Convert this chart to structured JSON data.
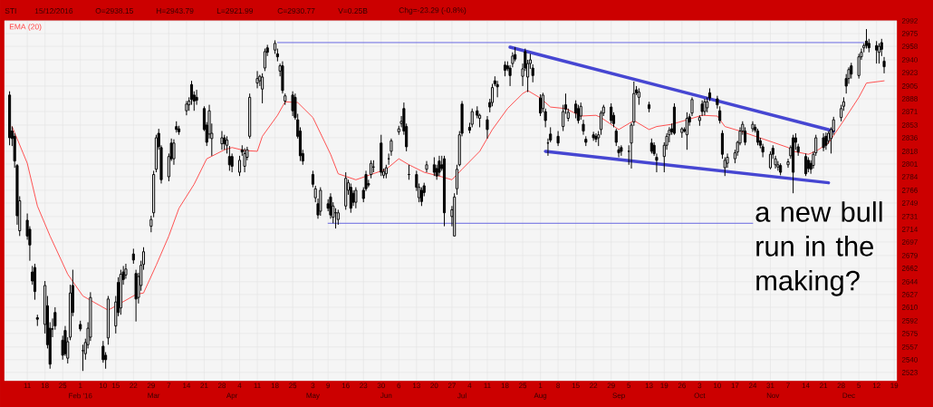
{
  "chart_data": {
    "type": "candlestick",
    "title": "STI",
    "annotations": [
      "15/12/2016",
      "O=2938.15",
      "H=2943.79",
      "L=2921.99",
      "C=2930.77",
      "V=0.25B",
      "Chg=-23.29 (-0.8%)",
      "a new bull run in the making?"
    ],
    "x": [
      "2016-01-04",
      "2016-01-05",
      "2016-01-06",
      "2016-01-07",
      "2016-01-08",
      "2016-01-11",
      "2016-01-12",
      "2016-01-13",
      "2016-01-14",
      "2016-01-15",
      "2016-01-18",
      "2016-01-19",
      "2016-01-20",
      "2016-01-21",
      "2016-01-22",
      "2016-01-25",
      "2016-01-26",
      "2016-01-27",
      "2016-01-28",
      "2016-01-29",
      "2016-02-01",
      "2016-02-02",
      "2016-02-03",
      "2016-02-04",
      "2016-02-05",
      "2016-02-10",
      "2016-02-11",
      "2016-02-12",
      "2016-02-15",
      "2016-02-16",
      "2016-02-17",
      "2016-02-18",
      "2016-02-19",
      "2016-02-22",
      "2016-02-23",
      "2016-02-24",
      "2016-02-25",
      "2016-02-26",
      "2016-02-29",
      "2016-03-01",
      "2016-03-02",
      "2016-03-03",
      "2016-03-04",
      "2016-03-07",
      "2016-03-08",
      "2016-03-09",
      "2016-03-10",
      "2016-03-11",
      "2016-03-14",
      "2016-03-15",
      "2016-03-16",
      "2016-03-17",
      "2016-03-18",
      "2016-03-21",
      "2016-03-22",
      "2016-03-23",
      "2016-03-24",
      "2016-03-28",
      "2016-03-29",
      "2016-03-30",
      "2016-03-31",
      "2016-04-01",
      "2016-04-04",
      "2016-04-05",
      "2016-04-06",
      "2016-04-07",
      "2016-04-08",
      "2016-04-11",
      "2016-04-12",
      "2016-04-13",
      "2016-04-14",
      "2016-04-15",
      "2016-04-18",
      "2016-04-19",
      "2016-04-20",
      "2016-04-21",
      "2016-04-22",
      "2016-04-25",
      "2016-04-26",
      "2016-04-27",
      "2016-04-28",
      "2016-04-29",
      "2016-05-03",
      "2016-05-04",
      "2016-05-05",
      "2016-05-06",
      "2016-05-09",
      "2016-05-10",
      "2016-05-11",
      "2016-05-12",
      "2016-05-13",
      "2016-05-16",
      "2016-05-17",
      "2016-05-18",
      "2016-05-19",
      "2016-05-20",
      "2016-05-23",
      "2016-05-24",
      "2016-05-25",
      "2016-05-26",
      "2016-05-27",
      "2016-05-30",
      "2016-05-31",
      "2016-06-01",
      "2016-06-02",
      "2016-06-03",
      "2016-06-06",
      "2016-06-07",
      "2016-06-08",
      "2016-06-09",
      "2016-06-10",
      "2016-06-13",
      "2016-06-14",
      "2016-06-15",
      "2016-06-16",
      "2016-06-17",
      "2016-06-20",
      "2016-06-21",
      "2016-06-22",
      "2016-06-23",
      "2016-06-24",
      "2016-06-27",
      "2016-06-28",
      "2016-06-29",
      "2016-06-30",
      "2016-07-01",
      "2016-07-04",
      "2016-07-05",
      "2016-07-07",
      "2016-07-08",
      "2016-07-11",
      "2016-07-12",
      "2016-07-13",
      "2016-07-14",
      "2016-07-15",
      "2016-07-18",
      "2016-07-19",
      "2016-07-20",
      "2016-07-21",
      "2016-07-22",
      "2016-07-25",
      "2016-07-26",
      "2016-07-27",
      "2016-07-28",
      "2016-07-29",
      "2016-08-01",
      "2016-08-02",
      "2016-08-03",
      "2016-08-04",
      "2016-08-05",
      "2016-08-08",
      "2016-08-10",
      "2016-08-11",
      "2016-08-12",
      "2016-08-15",
      "2016-08-16",
      "2016-08-17",
      "2016-08-18",
      "2016-08-19",
      "2016-08-22",
      "2016-08-23",
      "2016-08-24",
      "2016-08-25",
      "2016-08-26",
      "2016-08-29",
      "2016-08-30",
      "2016-08-31",
      "2016-09-01",
      "2016-09-02",
      "2016-09-05",
      "2016-09-06",
      "2016-09-07",
      "2016-09-08",
      "2016-09-09",
      "2016-09-13",
      "2016-09-14",
      "2016-09-15",
      "2016-09-16",
      "2016-09-19",
      "2016-09-20",
      "2016-09-21",
      "2016-09-22",
      "2016-09-23",
      "2016-09-26",
      "2016-09-27",
      "2016-09-28",
      "2016-09-29",
      "2016-09-30",
      "2016-10-03",
      "2016-10-04",
      "2016-10-05",
      "2016-10-06",
      "2016-10-07",
      "2016-10-10",
      "2016-10-11",
      "2016-10-12",
      "2016-10-13",
      "2016-10-14",
      "2016-10-17",
      "2016-10-18",
      "2016-10-19",
      "2016-10-20",
      "2016-10-21",
      "2016-10-24",
      "2016-10-25",
      "2016-10-26",
      "2016-10-27",
      "2016-10-28",
      "2016-10-31",
      "2016-11-01",
      "2016-11-02",
      "2016-11-03",
      "2016-11-04",
      "2016-11-07",
      "2016-11-08",
      "2016-11-09",
      "2016-11-10",
      "2016-11-11",
      "2016-11-14",
      "2016-11-15",
      "2016-11-16",
      "2016-11-17",
      "2016-11-18",
      "2016-11-21",
      "2016-11-22",
      "2016-11-23",
      "2016-11-24",
      "2016-11-25",
      "2016-11-28",
      "2016-11-29",
      "2016-11-30",
      "2016-12-01",
      "2016-12-02",
      "2016-12-05",
      "2016-12-06",
      "2016-12-07",
      "2016-12-08",
      "2016-12-09",
      "2016-12-12",
      "2016-12-13",
      "2016-12-14",
      "2016-12-15"
    ],
    "ohlc": [
      [
        2893,
        2898,
        2826,
        2836
      ],
      [
        2845,
        2851,
        2825,
        2835
      ],
      [
        2838,
        2842,
        2796,
        2805
      ],
      [
        2799,
        2801,
        2720,
        2732
      ],
      [
        2712,
        2758,
        2705,
        2752
      ],
      [
        2726,
        2735,
        2700,
        2705
      ],
      [
        2714,
        2718,
        2672,
        2693
      ],
      [
        2657,
        2665,
        2640,
        2645
      ],
      [
        2663,
        2668,
        2620,
        2631
      ],
      [
        2596,
        2600,
        2585,
        2594
      ],
      [
        2587,
        2645,
        2575,
        2639
      ],
      [
        2612,
        2625,
        2555,
        2560
      ],
      [
        2582,
        2590,
        2528,
        2534
      ],
      [
        2581,
        2595,
        2570,
        2581
      ],
      [
        2603,
        2610,
        2580,
        2585
      ],
      [
        2566,
        2572,
        2540,
        2546
      ],
      [
        2579,
        2585,
        2545,
        2548
      ],
      [
        2542,
        2570,
        2535,
        2564
      ],
      [
        2570,
        2640,
        2566,
        2629
      ],
      [
        2639,
        2660,
        2598,
        2603
      ],
      [
        2587,
        2592,
        2578,
        2581
      ],
      [
        2552,
        2560,
        2525,
        2552
      ],
      [
        2548,
        2568,
        2540,
        2563
      ],
      [
        2560,
        2590,
        2555,
        2582
      ],
      [
        2570,
        2630,
        2565,
        2623
      ],
      [
        2558,
        2565,
        2536,
        2540
      ],
      [
        2546,
        2550,
        2528,
        2540
      ],
      [
        2569,
        2625,
        2560,
        2621
      ],
      [
        2585,
        2625,
        2575,
        2617
      ],
      [
        2643,
        2650,
        2598,
        2603
      ],
      [
        2609,
        2660,
        2600,
        2654
      ],
      [
        2657,
        2665,
        2640,
        2647
      ],
      [
        2653,
        2668,
        2648,
        2661
      ],
      [
        2681,
        2688,
        2668,
        2673
      ],
      [
        2655,
        2660,
        2591,
        2621
      ],
      [
        2623,
        2656,
        2615,
        2651
      ],
      [
        2639,
        2672,
        2632,
        2666
      ],
      [
        2667,
        2690,
        2660,
        2684
      ],
      [
        2718,
        2732,
        2710,
        2727
      ],
      [
        2736,
        2792,
        2730,
        2787
      ],
      [
        2794,
        2840,
        2790,
        2836
      ],
      [
        2842,
        2848,
        2820,
        2824
      ],
      [
        2823,
        2826,
        2775,
        2780
      ],
      [
        2784,
        2815,
        2778,
        2811
      ],
      [
        2829,
        2835,
        2805,
        2808
      ],
      [
        2808,
        2834,
        2800,
        2829
      ],
      [
        2851,
        2858,
        2843,
        2847
      ],
      [
        2848,
        2852,
        2840,
        2844
      ],
      [
        2872,
        2885,
        2866,
        2881
      ],
      [
        2880,
        2890,
        2872,
        2885
      ],
      [
        2907,
        2912,
        2880,
        2887
      ],
      [
        2893,
        2898,
        2872,
        2885
      ],
      [
        2890,
        2900,
        2880,
        2886
      ],
      [
        2875,
        2878,
        2845,
        2847
      ],
      [
        2853,
        2857,
        2825,
        2830
      ],
      [
        2841,
        2880,
        2835,
        2872
      ],
      [
        2835,
        2855,
        2812,
        2842
      ],
      [
        2828,
        2845,
        2820,
        2836
      ],
      [
        2836,
        2840,
        2820,
        2828
      ],
      [
        2826,
        2838,
        2815,
        2833
      ],
      [
        2811,
        2825,
        2792,
        2800
      ],
      [
        2811,
        2815,
        2790,
        2798
      ],
      [
        2790,
        2812,
        2785,
        2806
      ],
      [
        2820,
        2826,
        2812,
        2817
      ],
      [
        2798,
        2822,
        2790,
        2815
      ],
      [
        2810,
        2824,
        2806,
        2820
      ],
      [
        2838,
        2895,
        2835,
        2890
      ],
      [
        2909,
        2925,
        2902,
        2915
      ],
      [
        2912,
        2920,
        2905,
        2918
      ],
      [
        2901,
        2922,
        2882,
        2917
      ],
      [
        2929,
        2955,
        2925,
        2951
      ],
      [
        2956,
        2960,
        2945,
        2950
      ],
      [
        2953,
        2966,
        2948,
        2962
      ],
      [
        2948,
        2955,
        2938,
        2944
      ],
      [
        2925,
        2935,
        2918,
        2932
      ],
      [
        2932,
        2938,
        2895,
        2899
      ],
      [
        2885,
        2895,
        2880,
        2892
      ],
      [
        2893,
        2898,
        2865,
        2872
      ],
      [
        2890,
        2895,
        2860,
        2863
      ],
      [
        2860,
        2868,
        2835,
        2838
      ],
      [
        2845,
        2850,
        2805,
        2812
      ],
      [
        2815,
        2820,
        2800,
        2805
      ],
      [
        2787,
        2792,
        2770,
        2774
      ],
      [
        2756,
        2772,
        2750,
        2768
      ],
      [
        2748,
        2755,
        2728,
        2733
      ],
      [
        2738,
        2770,
        2732,
        2766
      ],
      [
        2748,
        2754,
        2738,
        2742
      ],
      [
        2757,
        2762,
        2728,
        2733
      ],
      [
        2730,
        2750,
        2722,
        2745
      ],
      [
        2736,
        2742,
        2715,
        2736
      ],
      [
        2727,
        2740,
        2720,
        2736
      ],
      [
        2745,
        2790,
        2740,
        2782
      ],
      [
        2766,
        2780,
        2760,
        2776
      ],
      [
        2770,
        2775,
        2736,
        2742
      ],
      [
        2762,
        2766,
        2745,
        2750
      ],
      [
        2750,
        2770,
        2742,
        2766
      ],
      [
        2766,
        2770,
        2750,
        2755
      ],
      [
        2787,
        2792,
        2765,
        2768
      ],
      [
        2775,
        2780,
        2770,
        2773
      ],
      [
        2787,
        2806,
        2782,
        2802
      ],
      [
        2797,
        2806,
        2790,
        2797
      ],
      [
        2829,
        2840,
        2785,
        2790
      ],
      [
        2786,
        2795,
        2782,
        2791
      ],
      [
        2788,
        2800,
        2782,
        2796
      ],
      [
        2808,
        2815,
        2800,
        2808
      ],
      [
        2818,
        2835,
        2812,
        2832
      ],
      [
        2844,
        2852,
        2840,
        2848
      ],
      [
        2855,
        2865,
        2850,
        2858
      ],
      [
        2875,
        2883,
        2840,
        2845
      ],
      [
        2851,
        2855,
        2818,
        2824
      ],
      [
        2787,
        2800,
        2780,
        2787
      ],
      [
        2787,
        2792,
        2765,
        2770
      ],
      [
        2756,
        2775,
        2750,
        2770
      ],
      [
        2766,
        2770,
        2745,
        2751
      ],
      [
        2772,
        2776,
        2758,
        2763
      ],
      [
        2794,
        2805,
        2790,
        2800
      ],
      [
        2800,
        2810,
        2785,
        2790
      ],
      [
        2795,
        2800,
        2780,
        2785
      ],
      [
        2805,
        2812,
        2785,
        2790
      ],
      [
        2800,
        2812,
        2792,
        2795
      ],
      [
        2808,
        2812,
        2718,
        2736
      ],
      [
        2731,
        2745,
        2718,
        2740
      ],
      [
        2705,
        2762,
        2705,
        2757
      ],
      [
        2768,
        2800,
        2760,
        2794
      ],
      [
        2800,
        2845,
        2798,
        2840
      ],
      [
        2881,
        2885,
        2838,
        2842
      ],
      [
        2850,
        2856,
        2842,
        2846
      ],
      [
        2854,
        2875,
        2850,
        2871
      ],
      [
        2872,
        2878,
        2862,
        2866
      ],
      [
        2862,
        2868,
        2850,
        2866
      ],
      [
        2860,
        2865,
        2835,
        2847
      ],
      [
        2883,
        2888,
        2870,
        2877
      ],
      [
        2883,
        2908,
        2878,
        2903
      ],
      [
        2912,
        2918,
        2905,
        2908
      ],
      [
        2907,
        2912,
        2890,
        2904
      ],
      [
        2933,
        2938,
        2918,
        2926
      ],
      [
        2932,
        2938,
        2925,
        2928
      ],
      [
        2929,
        2933,
        2905,
        2919
      ],
      [
        2935,
        2950,
        2930,
        2945
      ],
      [
        2947,
        2957,
        2938,
        2941
      ],
      [
        2918,
        2935,
        2905,
        2928
      ],
      [
        2951,
        2955,
        2925,
        2929
      ],
      [
        2917,
        2940,
        2897,
        2935
      ],
      [
        2935,
        2948,
        2928,
        2940
      ],
      [
        2929,
        2934,
        2910,
        2919
      ],
      [
        2889,
        2894,
        2865,
        2869
      ],
      [
        2875,
        2896,
        2870,
        2893
      ],
      [
        2871,
        2875,
        2850,
        2859
      ],
      [
        2829,
        2835,
        2812,
        2829
      ],
      [
        2841,
        2850,
        2830,
        2833
      ],
      [
        2838,
        2845,
        2825,
        2829
      ],
      [
        2851,
        2880,
        2845,
        2871
      ],
      [
        2880,
        2895,
        2868,
        2874
      ],
      [
        2862,
        2875,
        2858,
        2870
      ],
      [
        2881,
        2886,
        2862,
        2869
      ],
      [
        2875,
        2880,
        2855,
        2859
      ],
      [
        2865,
        2883,
        2860,
        2878
      ],
      [
        2854,
        2860,
        2840,
        2845
      ],
      [
        2834,
        2838,
        2825,
        2830
      ],
      [
        2840,
        2844,
        2832,
        2836
      ],
      [
        2838,
        2842,
        2830,
        2834
      ],
      [
        2836,
        2845,
        2825,
        2840
      ],
      [
        2847,
        2872,
        2840,
        2869
      ],
      [
        2869,
        2880,
        2865,
        2877
      ],
      [
        2877,
        2882,
        2855,
        2859
      ],
      [
        2866,
        2870,
        2850,
        2855
      ],
      [
        2845,
        2848,
        2825,
        2830
      ],
      [
        2820,
        2825,
        2810,
        2816
      ],
      [
        2823,
        2826,
        2812,
        2818
      ],
      [
        2818,
        2826,
        2800,
        2818
      ],
      [
        2829,
        2856,
        2795,
        2853
      ],
      [
        2857,
        2911,
        2852,
        2895
      ],
      [
        2900,
        2905,
        2893,
        2896
      ],
      [
        2890,
        2902,
        2880,
        2897
      ],
      [
        2880,
        2884,
        2870,
        2875
      ],
      [
        2829,
        2835,
        2815,
        2818
      ],
      [
        2826,
        2830,
        2812,
        2815
      ],
      [
        2810,
        2815,
        2790,
        2806
      ],
      [
        2811,
        2830,
        2790,
        2826
      ],
      [
        2826,
        2842,
        2820,
        2838
      ],
      [
        2840,
        2850,
        2830,
        2846
      ],
      [
        2848,
        2855,
        2840,
        2844
      ],
      [
        2877,
        2882,
        2840,
        2842
      ],
      [
        2843,
        2850,
        2836,
        2848
      ],
      [
        2847,
        2850,
        2843,
        2845
      ],
      [
        2840,
        2870,
        2820,
        2862
      ],
      [
        2864,
        2868,
        2852,
        2857
      ],
      [
        2869,
        2890,
        2865,
        2887
      ],
      [
        2859,
        2866,
        2852,
        2863
      ],
      [
        2881,
        2886,
        2865,
        2871
      ],
      [
        2871,
        2888,
        2866,
        2884
      ],
      [
        2876,
        2890,
        2870,
        2884
      ],
      [
        2896,
        2902,
        2885,
        2889
      ],
      [
        2888,
        2892,
        2875,
        2880
      ],
      [
        2872,
        2878,
        2855,
        2859
      ],
      [
        2842,
        2846,
        2808,
        2814
      ],
      [
        2796,
        2810,
        2785,
        2806
      ],
      [
        2802,
        2815,
        2796,
        2810
      ],
      [
        2808,
        2820,
        2802,
        2816
      ],
      [
        2817,
        2832,
        2812,
        2830
      ],
      [
        2829,
        2850,
        2826,
        2845
      ],
      [
        2845,
        2858,
        2840,
        2854
      ],
      [
        2845,
        2850,
        2826,
        2830
      ],
      [
        2848,
        2858,
        2844,
        2854
      ],
      [
        2850,
        2854,
        2843,
        2846
      ],
      [
        2845,
        2848,
        2826,
        2830
      ],
      [
        2832,
        2836,
        2822,
        2826
      ],
      [
        2824,
        2828,
        2810,
        2817
      ],
      [
        2796,
        2818,
        2794,
        2814
      ],
      [
        2822,
        2826,
        2808,
        2814
      ],
      [
        2800,
        2812,
        2795,
        2808
      ],
      [
        2797,
        2805,
        2792,
        2800
      ],
      [
        2799,
        2802,
        2786,
        2790
      ],
      [
        2800,
        2808,
        2796,
        2804
      ],
      [
        2812,
        2826,
        2808,
        2823
      ],
      [
        2836,
        2840,
        2762,
        2790
      ],
      [
        2836,
        2842,
        2820,
        2830
      ],
      [
        2824,
        2828,
        2812,
        2817
      ],
      [
        2811,
        2815,
        2785,
        2788
      ],
      [
        2806,
        2810,
        2790,
        2795
      ],
      [
        2802,
        2806,
        2788,
        2794
      ],
      [
        2799,
        2818,
        2795,
        2814
      ],
      [
        2816,
        2840,
        2812,
        2836
      ],
      [
        2836,
        2842,
        2818,
        2823
      ],
      [
        2838,
        2843,
        2820,
        2826
      ],
      [
        2832,
        2845,
        2828,
        2842
      ],
      [
        2835,
        2850,
        2815,
        2847
      ],
      [
        2845,
        2864,
        2840,
        2860
      ],
      [
        2863,
        2880,
        2858,
        2875
      ],
      [
        2878,
        2890,
        2872,
        2884
      ],
      [
        2915,
        2921,
        2895,
        2905
      ],
      [
        2915,
        2930,
        2908,
        2927
      ],
      [
        2932,
        2936,
        2915,
        2921
      ],
      [
        2919,
        2948,
        2915,
        2944
      ],
      [
        2944,
        2955,
        2940,
        2950
      ],
      [
        2956,
        2962,
        2950,
        2959
      ],
      [
        2965,
        2981,
        2955,
        2959
      ],
      [
        2962,
        2968,
        2950,
        2956
      ],
      [
        2959,
        2965,
        2935,
        2953
      ],
      [
        2950,
        2962,
        2935,
        2958
      ],
      [
        2963,
        2968,
        2945,
        2954
      ],
      [
        2938.15,
        2943.79,
        2921.99,
        2930.77
      ]
    ],
    "series": [
      {
        "name": "EMA (20)",
        "type": "line",
        "color": "#ff4040",
        "x": [
          "2016-01-05",
          "2016-01-11",
          "2016-01-15",
          "2016-01-20",
          "2016-01-27",
          "2016-02-02",
          "2016-02-12",
          "2016-02-23",
          "2016-02-26",
          "2016-03-02",
          "2016-03-07",
          "2016-03-11",
          "2016-03-17",
          "2016-03-22",
          "2016-03-29",
          "2016-04-01",
          "2016-04-06",
          "2016-04-11",
          "2016-04-13",
          "2016-04-19",
          "2016-04-22",
          "2016-04-27",
          "2016-05-03",
          "2016-05-10",
          "2016-05-13",
          "2016-05-20",
          "2016-05-26",
          "2016-06-01",
          "2016-06-06",
          "2016-06-10",
          "2016-06-16",
          "2016-06-23",
          "2016-06-27",
          "2016-07-01",
          "2016-07-08",
          "2016-07-13",
          "2016-07-19",
          "2016-07-25",
          "2016-07-27",
          "2016-08-01",
          "2016-08-05",
          "2016-08-11",
          "2016-08-17",
          "2016-08-23",
          "2016-08-25",
          "2016-09-01",
          "2016-09-07",
          "2016-09-13",
          "2016-09-16",
          "2016-09-22",
          "2016-09-28",
          "2016-10-04",
          "2016-10-10",
          "2016-10-13",
          "2016-10-19",
          "2016-10-25",
          "2016-11-01",
          "2016-11-07",
          "2016-11-09",
          "2016-11-15",
          "2016-11-18",
          "2016-11-23",
          "2016-11-29",
          "2016-12-05",
          "2016-12-08",
          "2016-12-15"
        ],
        "values": [
          2851,
          2802,
          2745,
          2705,
          2654,
          2625,
          2606,
          2627,
          2629,
          2666,
          2705,
          2742,
          2774,
          2808,
          2820,
          2823,
          2819,
          2818,
          2838,
          2866,
          2884,
          2883,
          2863,
          2814,
          2788,
          2780,
          2787,
          2794,
          2808,
          2800,
          2790,
          2784,
          2780,
          2794,
          2818,
          2847,
          2875,
          2895,
          2899,
          2889,
          2877,
          2875,
          2865,
          2866,
          2863,
          2847,
          2859,
          2847,
          2851,
          2854,
          2860,
          2866,
          2865,
          2851,
          2845,
          2838,
          2830,
          2823,
          2818,
          2814,
          2818,
          2829,
          2859,
          2890,
          2909,
          2912
        ]
      },
      {
        "type": "line",
        "color": "#5a5ae0",
        "x": [
          "2016-04-19",
          "2016-12-07"
        ],
        "values": [
          2963,
          2963
        ]
      },
      {
        "type": "line",
        "color": "#5a5ae0",
        "x": [
          "2016-05-09",
          "2016-10-24"
        ],
        "values": [
          2722,
          2722
        ]
      },
      {
        "type": "line",
        "color": "#4646d2",
        "x": [
          "2016-07-20",
          "2016-11-25"
        ],
        "values": [
          2957,
          2845
        ]
      },
      {
        "type": "line",
        "color": "#4646d2",
        "x": [
          "2016-08-03",
          "2016-11-23"
        ],
        "values": [
          2818,
          2776
        ]
      }
    ],
    "xlim": [
      "2016-01-02",
      "2016-12-20"
    ],
    "ylim": [
      2512,
      2992
    ],
    "xticks": [
      {
        "value": "2016-01-11",
        "label": "11"
      },
      {
        "value": "2016-01-18",
        "label": "18"
      },
      {
        "value": "2016-01-25",
        "label": "25"
      },
      {
        "value": "2016-02-01",
        "label": "1"
      },
      {
        "value": "2016-02-10",
        "label": "10"
      },
      {
        "value": "2016-02-15",
        "label": "15"
      },
      {
        "value": "2016-02-22",
        "label": "22"
      },
      {
        "value": "2016-02-29",
        "label": "29"
      },
      {
        "value": "2016-03-07",
        "label": "7"
      },
      {
        "value": "2016-03-14",
        "label": "14"
      },
      {
        "value": "2016-03-21",
        "label": "21"
      },
      {
        "value": "2016-03-28",
        "label": "28"
      },
      {
        "value": "2016-04-04",
        "label": "4"
      },
      {
        "value": "2016-04-11",
        "label": "11"
      },
      {
        "value": "2016-04-18",
        "label": "18"
      },
      {
        "value": "2016-04-25",
        "label": "25"
      },
      {
        "value": "2016-05-03",
        "label": "3"
      },
      {
        "value": "2016-05-09",
        "label": "9"
      },
      {
        "value": "2016-05-16",
        "label": "16"
      },
      {
        "value": "2016-05-23",
        "label": "23"
      },
      {
        "value": "2016-05-30",
        "label": "30"
      },
      {
        "value": "2016-06-06",
        "label": "6"
      },
      {
        "value": "2016-06-13",
        "label": "13"
      },
      {
        "value": "2016-06-20",
        "label": "20"
      },
      {
        "value": "2016-06-27",
        "label": "27"
      },
      {
        "value": "2016-07-04",
        "label": "4"
      },
      {
        "value": "2016-07-11",
        "label": "11"
      },
      {
        "value": "2016-07-18",
        "label": "18"
      },
      {
        "value": "2016-07-25",
        "label": "25"
      },
      {
        "value": "2016-08-01",
        "label": "1"
      },
      {
        "value": "2016-08-08",
        "label": "8"
      },
      {
        "value": "2016-08-15",
        "label": "15"
      },
      {
        "value": "2016-08-22",
        "label": "22"
      },
      {
        "value": "2016-08-29",
        "label": "29"
      },
      {
        "value": "2016-09-05",
        "label": "5"
      },
      {
        "value": "2016-09-13",
        "label": "13"
      },
      {
        "value": "2016-09-19",
        "label": "19"
      },
      {
        "value": "2016-09-26",
        "label": "26"
      },
      {
        "value": "2016-10-03",
        "label": "3"
      },
      {
        "value": "2016-10-10",
        "label": "10"
      },
      {
        "value": "2016-10-17",
        "label": "17"
      },
      {
        "value": "2016-10-24",
        "label": "24"
      },
      {
        "value": "2016-10-31",
        "label": "31"
      },
      {
        "value": "2016-11-07",
        "label": "7"
      },
      {
        "value": "2016-11-14",
        "label": "14"
      },
      {
        "value": "2016-11-21",
        "label": "21"
      },
      {
        "value": "2016-11-28",
        "label": "28"
      },
      {
        "value": "2016-12-05",
        "label": "5"
      },
      {
        "value": "2016-12-12",
        "label": "12"
      },
      {
        "value": "2016-12-19",
        "label": "19"
      }
    ],
    "x2lim": [
      "2016-01-02",
      "2016-12-20"
    ],
    "x2ticks": [
      {
        "value": "2016-02-01",
        "label": "Feb '16"
      },
      {
        "value": "2016-03-01",
        "label": "Mar"
      },
      {
        "value": "2016-04-01",
        "label": "Apr"
      },
      {
        "value": "2016-05-03",
        "label": "May"
      },
      {
        "value": "2016-06-01",
        "label": "Jun"
      },
      {
        "value": "2016-07-01",
        "label": "Jul"
      },
      {
        "value": "2016-08-01",
        "label": "Aug"
      },
      {
        "value": "2016-09-01",
        "label": "Sep"
      },
      {
        "value": "2016-10-03",
        "label": "Oct"
      },
      {
        "value": "2016-11-01",
        "label": "Nov"
      },
      {
        "value": "2016-12-01",
        "label": "Dec"
      }
    ],
    "yticks": [
      2992,
      2975,
      2958,
      2940,
      2923,
      2905,
      2888,
      2871,
      2853,
      2836,
      2818,
      2801,
      2784,
      2766,
      2749,
      2731,
      2714,
      2697,
      2679,
      2662,
      2644,
      2627,
      2610,
      2592,
      2575,
      2557,
      2540,
      2523
    ],
    "grid": true,
    "legend": "top left"
  }
}
